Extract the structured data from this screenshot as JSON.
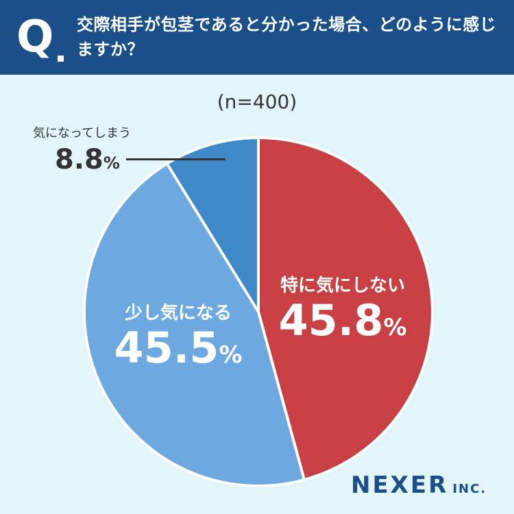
{
  "header": {
    "q_label": "Q",
    "question": "交際相手が包茎であると分かった場合、どのように感じますか？"
  },
  "sample_size": "(n=400)",
  "chart_data": {
    "type": "pie",
    "categories": [
      "特に気にしない",
      "少し気になる",
      "気になってしまう"
    ],
    "values": [
      45.8,
      45.5,
      8.8
    ],
    "value_labels": [
      "45.8",
      "45.5",
      "8.8"
    ],
    "unit": "%",
    "colors": [
      "#c94044",
      "#6da9e0",
      "#3f89c8"
    ],
    "start": "12 o'clock",
    "direction": "clockwise",
    "title": "",
    "legend": "none"
  },
  "logo": {
    "main": "NEXER",
    "sub": "INC."
  }
}
